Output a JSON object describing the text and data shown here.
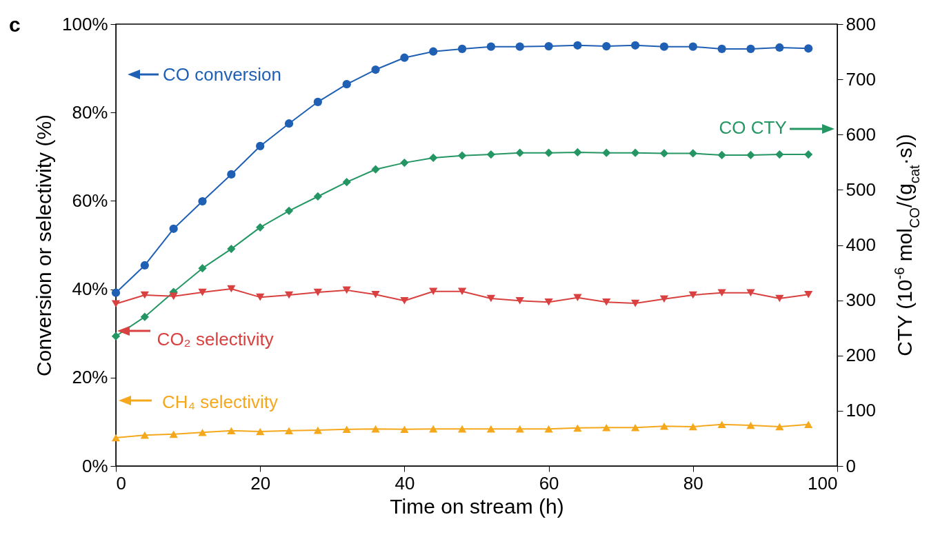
{
  "chart_data": {
    "type": "line",
    "title": "c",
    "xlabel": "Time on stream (h)",
    "ylabel": "Conversion or selectivity (%)",
    "y2label": "CTY (10$^{-6}$ mol$_{CO}$/(g$_{cat}$·s))",
    "x": [
      0,
      4,
      8,
      12,
      16,
      20,
      24,
      28,
      32,
      36,
      40,
      44,
      48,
      52,
      56,
      60,
      64,
      68,
      72,
      76,
      80,
      84,
      88,
      92,
      96
    ],
    "series": [
      {
        "name": "CO conversion",
        "color": "#1f5fb4",
        "marker": "circle",
        "values": [
          39.2,
          45.4,
          53.7,
          59.9,
          66.0,
          72.4,
          77.5,
          82.4,
          86.4,
          89.7,
          92.4,
          93.8,
          94.4,
          94.9,
          94.9,
          95.0,
          95.2,
          95.0,
          95.2,
          94.9,
          94.9,
          94.4,
          94.4,
          94.7,
          94.5
        ]
      },
      {
        "name": "CO CTY",
        "color": "#249663",
        "marker": "diamond",
        "axis": "y2",
        "values": [
          235,
          270,
          315,
          358,
          393,
          432,
          462,
          488,
          514,
          537,
          549,
          558,
          562,
          564,
          567,
          567,
          568,
          567,
          567,
          566,
          566,
          563,
          563,
          564,
          564
        ]
      },
      {
        "name": "CO₂ selectivity",
        "color": "#d8413f",
        "marker": "triangle-down",
        "values": [
          36.7,
          38.7,
          38.4,
          39.3,
          40.1,
          38.2,
          38.7,
          39.3,
          39.8,
          38.8,
          37.4,
          39.5,
          39.5,
          37.9,
          37.4,
          37.1,
          38.1,
          37.1,
          36.8,
          37.8,
          38.7,
          39.2,
          39.2,
          37.9,
          38.8
        ]
      },
      {
        "name": "CH₄ selectivity",
        "color": "#f5a81c",
        "marker": "triangle",
        "values": [
          6.4,
          7.0,
          7.2,
          7.6,
          8.0,
          7.8,
          8.0,
          8.1,
          8.3,
          8.4,
          8.3,
          8.4,
          8.4,
          8.4,
          8.4,
          8.4,
          8.6,
          8.7,
          8.7,
          9.0,
          8.9,
          9.4,
          9.2,
          8.9,
          9.4
        ]
      }
    ],
    "xlim": [
      0,
      100
    ],
    "xticks": [
      0,
      20,
      40,
      60,
      80,
      100
    ],
    "ylim": [
      0,
      100
    ],
    "yticks": [
      {
        "value": 0,
        "label": "0%"
      },
      {
        "value": 20,
        "label": "20%"
      },
      {
        "value": 40,
        "label": "40%"
      },
      {
        "value": 60,
        "label": "60%"
      },
      {
        "value": 80,
        "label": "80%"
      },
      {
        "value": 100,
        "label": "100%"
      }
    ],
    "y2lim": [
      0,
      800
    ],
    "y2ticks": [
      0,
      100,
      200,
      300,
      400,
      500,
      600,
      700,
      800
    ],
    "grid": false,
    "legend": "left"
  }
}
